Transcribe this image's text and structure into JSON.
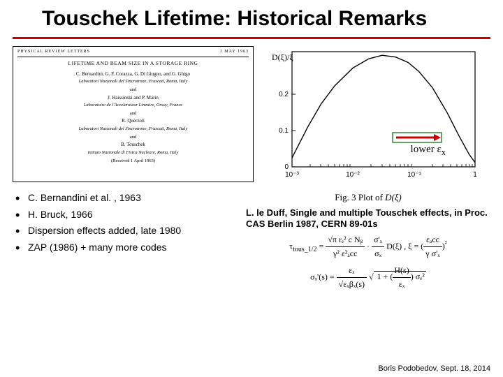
{
  "title": "Touschek Lifetime: Historical Remarks",
  "title_underline_color": "#cc0000",
  "paper_header": {
    "journal": "PHYSICAL  REVIEW  LETTERS",
    "date": "1 MAY 1963",
    "title": "LIFETIME AND BEAM SIZE IN A STORAGE RING",
    "blocks": [
      {
        "authors": "C. Bernardini, G. F. Corazza, G. Di Giugno, and G. Ghigo",
        "affil": "Laboratori Nazionali del Sincrotrone, Frascati, Roma, Italy"
      },
      {
        "authors": "J. Haissinski and P. Marin",
        "affil": "Laboratoire de l'Accelerateur Lineaire, Orsay, France"
      },
      {
        "authors": "R. Querzoli",
        "affil": "Laboratori Nazionali del Sincrotrone, Frascati, Roma, Italy"
      },
      {
        "authors": "B. Touschek",
        "affil": "Istituto Nazionale di Fisica Nucleare, Roma, Italy"
      }
    ],
    "and": "and",
    "received": "(Received 1 April 1963)"
  },
  "plot": {
    "type": "line",
    "xscale": "log",
    "xlim": [
      0.001,
      1
    ],
    "ylim": [
      0,
      0.32
    ],
    "xticks": [
      "10⁻³",
      "10⁻²",
      "10⁻¹",
      "1"
    ],
    "yticks": [
      "0",
      "0.1",
      "0.2"
    ],
    "ylabel": "D(ξ)/ξ",
    "line_color": "#000000",
    "line_width": 1.2,
    "background_color": "#ffffff",
    "axis_color": "#000000",
    "points": [
      [
        0.001,
        0.025
      ],
      [
        0.0018,
        0.11
      ],
      [
        0.003,
        0.175
      ],
      [
        0.005,
        0.225
      ],
      [
        0.01,
        0.275
      ],
      [
        0.018,
        0.3
      ],
      [
        0.03,
        0.31
      ],
      [
        0.05,
        0.305
      ],
      [
        0.08,
        0.29
      ],
      [
        0.12,
        0.265
      ],
      [
        0.2,
        0.22
      ],
      [
        0.35,
        0.15
      ],
      [
        0.55,
        0.085
      ],
      [
        0.8,
        0.035
      ],
      [
        1.0,
        0.012
      ]
    ],
    "annotation": "lower ε",
    "annotation_sub": "x",
    "arrow_color": "#cc0000",
    "arrow_outline": "#006600"
  },
  "bullets": [
    "C. Bernandini et al. ,  1963",
    "H. Bruck, 1966",
    "Dispersion effects added, late 1980",
    "ZAP (1986) + many more codes"
  ],
  "fig_caption_prefix": "Fig. 3 Plot of ",
  "fig_caption_math": "D(ξ)",
  "citation": "L. le Duff, Single and multiple Touschek effects, in Proc. CAS Berlin 1987, CERN 89-01s",
  "formula1_left": "τ",
  "formula1_sub": "tous_1/2",
  "formula1_mid": " = ",
  "formula1_frac_top": "√π rₑ² c Nᵦ",
  "formula1_frac_bot": "γ² ε²ₐcc",
  "formula1_dot": " · ",
  "formula1_frac2_top": "σ'ₓ",
  "formula1_frac2_bot": "σₓ",
  "formula1_end": " D(ξ) ,     ξ = ",
  "formula1_paren_top": "εₐcc",
  "formula1_paren_bot": "γ σ'ₓ",
  "formula1_sq": "²",
  "formula2_left": "σₓ'(s) = ",
  "formula2_frac_top": "εₓ",
  "formula2_frac_bot": "√εₓβₓ(s)",
  "formula2_sqrt_inner": "1 + ",
  "formula2_paren_top": "H(s)",
  "formula2_paren_bot": "εₓ",
  "formula2_tail": " σₑ²",
  "footer": "Boris Podobedov, Sept. 18, 2014"
}
